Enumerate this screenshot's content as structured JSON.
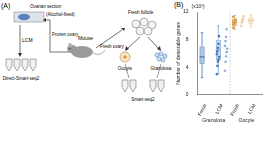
{
  "panel_a": {
    "label": "(A)",
    "slide": "Ovarian section",
    "slide_note": "(Alcohol-fixed)",
    "lcm": "LCM",
    "frozen": "Frozen ovary",
    "mouse": "Mouse",
    "fresh_ovary": "Fresh ovary",
    "fresh_follicle": "Fresh follicle",
    "oocyte": "Oocyte",
    "granulosa": "Granulosa",
    "method_left": "Direct-Smart-seq2",
    "method_right": "Smart-seq2"
  },
  "panel_b_label": "(B)",
  "chart_data": {
    "type": "box",
    "categories": [
      "Fresh",
      "LCM",
      "Fresh",
      "LCM"
    ],
    "groups": [
      "Granulosa",
      "Granulosa",
      "Oocyte",
      "Oocyte"
    ],
    "ylabel": "Number of detectable genes",
    "annotations": [
      "(x10³)"
    ],
    "ylim": [
      0,
      12
    ],
    "yticks": [
      0,
      4,
      8,
      12
    ],
    "grid": false,
    "colors": [
      "#3f6fb0",
      "#7fa6d8",
      "#d9974a",
      "#efc48a"
    ],
    "boxes": [
      {
        "min": 2.5,
        "q1": 4.5,
        "median": 5.5,
        "q3": 7,
        "max": 9,
        "points": [
          3,
          4.2,
          4.8,
          5.1,
          5.5,
          5.9,
          6.3,
          6.8,
          7.4,
          8.5
        ]
      },
      {
        "min": 3,
        "q1": 5,
        "median": 6.5,
        "q3": 8,
        "max": 10,
        "points": [
          3.5,
          4.8,
          5.6,
          6.2,
          6.7,
          7.1,
          7.8,
          8.4,
          9.5
        ]
      },
      {
        "min": 9.5,
        "q1": 10,
        "median": 10.5,
        "q3": 11,
        "max": 11.5,
        "points": [
          9.7,
          10.1,
          10.4,
          10.6,
          10.9,
          11.3
        ]
      },
      {
        "min": 9.8,
        "q1": 10.3,
        "median": 10.8,
        "q3": 11.2,
        "max": 11.6,
        "points": [
          10,
          10.5,
          10.8,
          11,
          11.4
        ]
      }
    ]
  }
}
